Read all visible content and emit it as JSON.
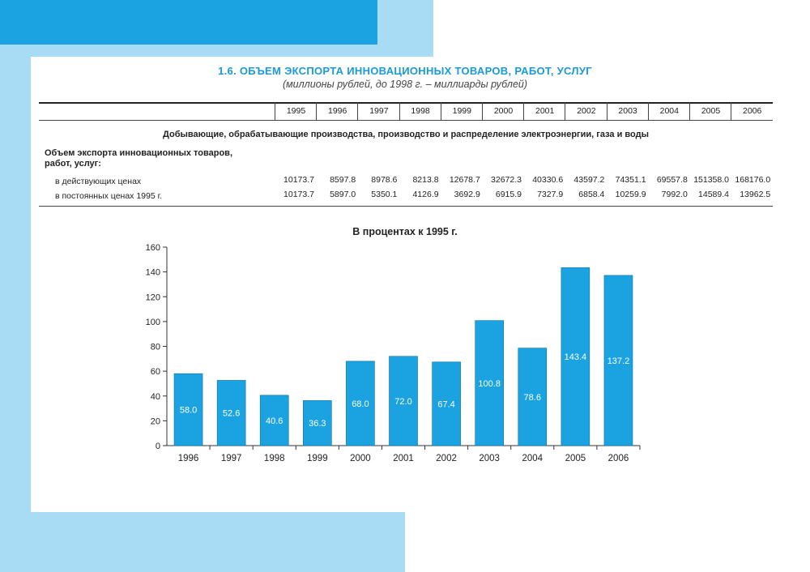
{
  "title": "1.6. ОБЪЕМ ЭКСПОРТА ИННОВАЦИОННЫХ ТОВАРОВ, РАБОТ, УСЛУГ",
  "subtitle": "(миллионы рублей, до 1998 г. – миллиарды рублей)",
  "table": {
    "years": [
      "1995",
      "1996",
      "1997",
      "1998",
      "1999",
      "2000",
      "2001",
      "2002",
      "2003",
      "2004",
      "2005",
      "2006"
    ],
    "section_title": "Добывающие, обрабатывающие производства, производство и распределение электроэнергии, газа и воды",
    "row_group_label": "Объем экспорта инновационных товаров, работ, услуг:",
    "rows": [
      {
        "label": "в действующих ценах",
        "values": [
          "10173.7",
          "8597.8",
          "8978.6",
          "8213.8",
          "12678.7",
          "32672.3",
          "40330.6",
          "43597.2",
          "74351.1",
          "69557.8",
          "151358.0",
          "168176.0"
        ]
      },
      {
        "label": "в постоянных ценах 1995 г.",
        "values": [
          "10173.7",
          "5897.0",
          "5350.1",
          "4126.9",
          "3692.9",
          "6915.9",
          "7327.9",
          "6858.4",
          "10259.9",
          "7992.0",
          "14589.4",
          "13962.5"
        ]
      }
    ]
  },
  "chart_data": {
    "type": "bar",
    "title": "В процентах к 1995 г.",
    "categories": [
      "1996",
      "1997",
      "1998",
      "1999",
      "2000",
      "2001",
      "2002",
      "2003",
      "2004",
      "2005",
      "2006"
    ],
    "values": [
      58.0,
      52.6,
      40.6,
      36.3,
      68.0,
      72.0,
      67.4,
      100.8,
      78.6,
      143.4,
      137.2
    ],
    "value_labels": [
      "58.0",
      "52.6",
      "40.6",
      "36.3",
      "68.0",
      "72.0",
      "67.4",
      "100.8",
      "78.6",
      "143.4",
      "137.2"
    ],
    "yticks": [
      "0",
      "20",
      "40",
      "60",
      "80",
      "100",
      "120",
      "140",
      "160"
    ],
    "ylim": [
      0,
      160
    ],
    "grid": false,
    "colors": {
      "bar": "#1aa3e0",
      "bar_stroke": "#0e6fa3",
      "label": "#ffffff"
    }
  }
}
